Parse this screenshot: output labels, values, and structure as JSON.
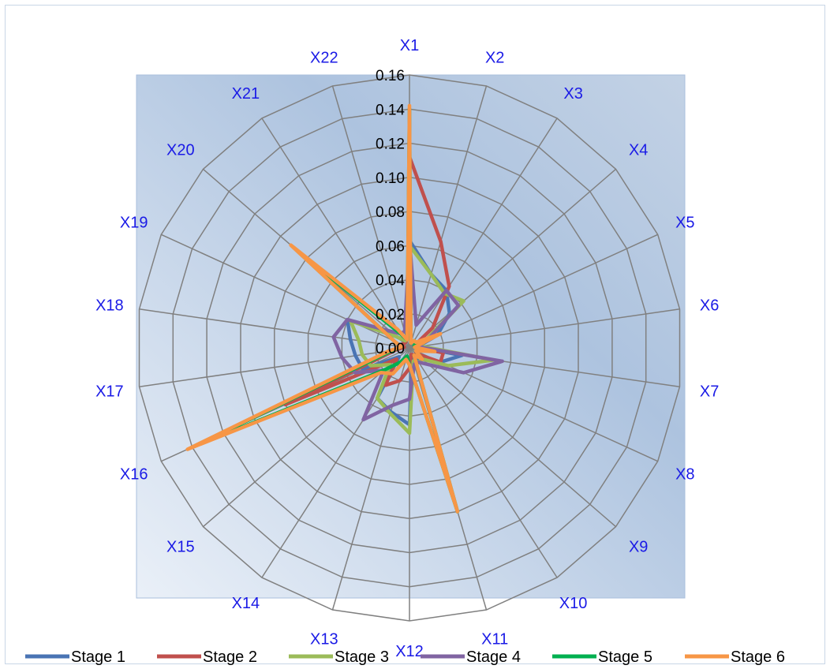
{
  "chart_data": {
    "type": "radar",
    "categories": [
      "X1",
      "X2",
      "X3",
      "X4",
      "X5",
      "X6",
      "X7",
      "X8",
      "X9",
      "X10",
      "X11",
      "X12",
      "X13",
      "X14",
      "X15",
      "X16",
      "X17",
      "X18",
      "X19",
      "X20",
      "X21",
      "X22"
    ],
    "rlim": [
      0,
      0.16
    ],
    "ticks": [
      "0.00",
      "0.02",
      "0.04",
      "0.06",
      "0.08",
      "0.10",
      "0.12",
      "0.14",
      "0.16"
    ],
    "tick_values": [
      0,
      0.02,
      0.04,
      0.06,
      0.08,
      0.1,
      0.12,
      0.14,
      0.16
    ],
    "grid": true,
    "legend_position": "bottom",
    "series": [
      {
        "name": "Stage 1",
        "color": "#4a74b4",
        "values": [
          0.063,
          0.045,
          0.04,
          0.031,
          0.018,
          0.005,
          0.031,
          0.02,
          0.01,
          0.008,
          0.005,
          0.045,
          0.039,
          0.035,
          0.008,
          0.03,
          0.032,
          0.035,
          0.04,
          0.01,
          0.005,
          0.006
        ]
      },
      {
        "name": "Stage 2",
        "color": "#c0504d",
        "values": [
          0.112,
          0.065,
          0.043,
          0.018,
          0.003,
          0.003,
          0.02,
          0.02,
          0.005,
          0.005,
          0.004,
          0.012,
          0.02,
          0.026,
          0.01,
          0.08,
          0.008,
          0.003,
          0.005,
          0.004,
          0.004,
          0.005
        ]
      },
      {
        "name": "Stage 3",
        "color": "#9bbb59",
        "values": [
          0.06,
          0.045,
          0.038,
          0.042,
          0.01,
          0.007,
          0.05,
          0.025,
          0.01,
          0.01,
          0.008,
          0.05,
          0.04,
          0.035,
          0.015,
          0.025,
          0.028,
          0.03,
          0.038,
          0.01,
          0.005,
          0.005
        ]
      },
      {
        "name": "Stage 4",
        "color": "#8064a2",
        "values": [
          0.063,
          0.014,
          0.04,
          0.038,
          0.012,
          0.005,
          0.055,
          0.035,
          0.015,
          0.01,
          0.01,
          0.03,
          0.035,
          0.05,
          0.02,
          0.035,
          0.04,
          0.045,
          0.04,
          0.015,
          0.01,
          0.01
        ]
      },
      {
        "name": "Stage 5",
        "color": "#00b050",
        "values": [
          0.14,
          0.003,
          0.005,
          0.005,
          0.003,
          0.003,
          0.01,
          0.004,
          0.01,
          0.005,
          0.1,
          0.01,
          0.005,
          0.01,
          0.02,
          0.14,
          0.01,
          0.005,
          0.01,
          0.09,
          0.01,
          0.005
        ]
      },
      {
        "name": "Stage 6",
        "color": "#f79646",
        "values": [
          0.142,
          0.003,
          0.005,
          0.005,
          0.02,
          0.003,
          0.015,
          0.004,
          0.01,
          0.005,
          0.1,
          0.01,
          0.007,
          0.018,
          0.022,
          0.143,
          0.012,
          0.005,
          0.01,
          0.092,
          0.013,
          0.005
        ]
      }
    ]
  }
}
